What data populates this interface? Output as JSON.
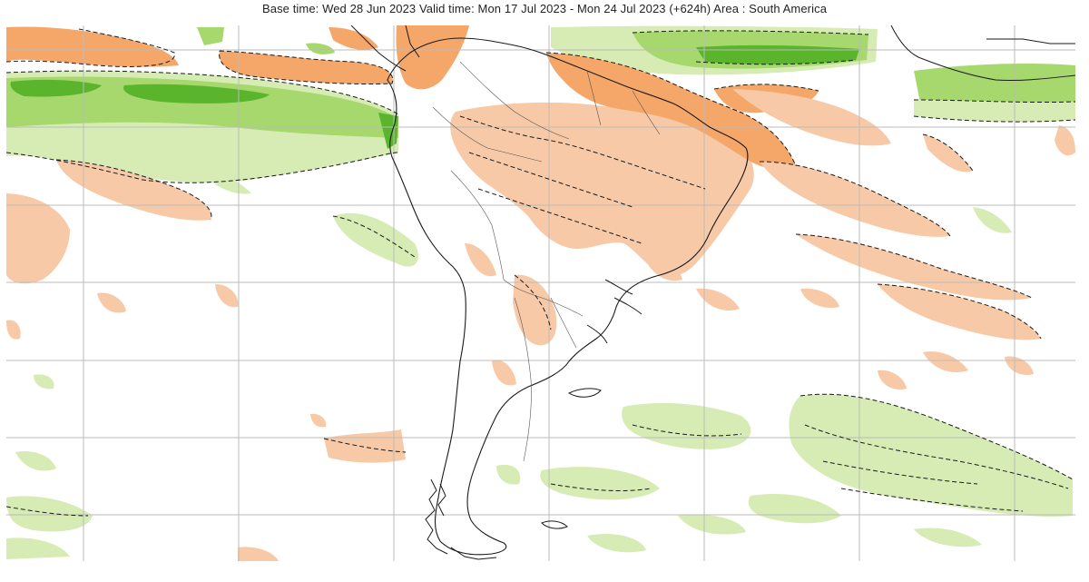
{
  "title": "Base time: Wed 28 Jun 2023 Valid time: Mon 17 Jul 2023 - Mon 24 Jul 2023 (+624h) Area : South America",
  "map": {
    "area": "South America",
    "projection": "lat-lon grid",
    "colors": {
      "light_orange": "#f7c9a6",
      "medium_orange": "#f5a76a",
      "light_green": "#d6ecb4",
      "medium_green": "#a6d86e",
      "dark_green": "#5ab42c",
      "gridline": "#bbbbbb",
      "coast": "#1a1a1a",
      "contour": "#1a1a1a"
    }
  }
}
